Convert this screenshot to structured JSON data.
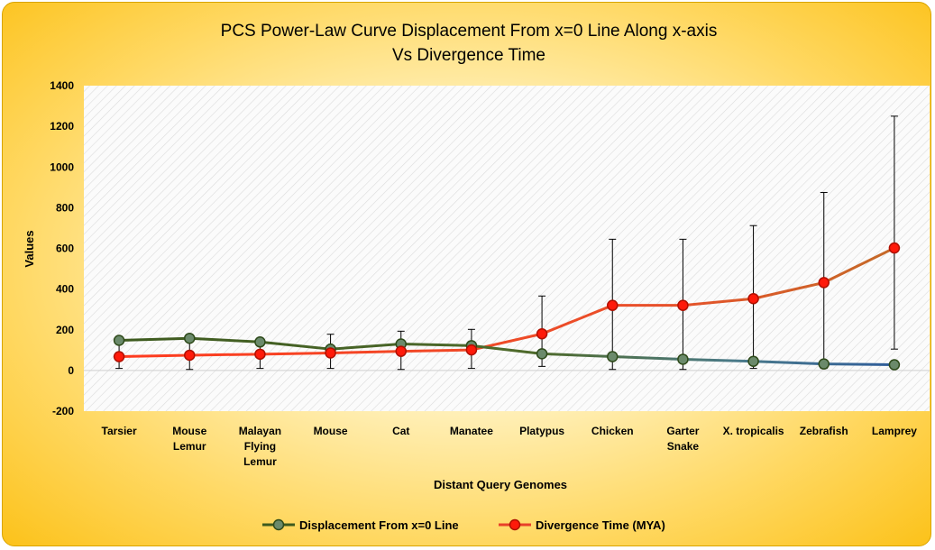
{
  "chart_data": {
    "type": "line",
    "title_line1": "PCS Power-Law Curve Displacement From x=0 Line Along x-axis",
    "title_line2": "Vs Divergence Time",
    "xlabel": "Distant Query Genomes",
    "ylabel": "Values",
    "ylim": [
      -200,
      1400
    ],
    "yticks": [
      -200,
      0,
      200,
      400,
      600,
      800,
      1000,
      1200,
      1400
    ],
    "grid": false,
    "legend_position": "bottom",
    "categories": [
      [
        "Tarsier"
      ],
      [
        "Mouse",
        "Lemur"
      ],
      [
        "Malayan",
        "Flying",
        "Lemur"
      ],
      [
        "Mouse"
      ],
      [
        "Cat"
      ],
      [
        "Manatee"
      ],
      [
        "Platypus"
      ],
      [
        "Chicken"
      ],
      [
        "Garter",
        "Snake"
      ],
      [
        "X. tropicalis"
      ],
      [
        "Zebrafish"
      ],
      [
        "Lamprey"
      ]
    ],
    "series": [
      {
        "name": "Displacement From x=0 Line",
        "color": "#3d5a1e",
        "marker_color": "#6b8a6b",
        "values": [
          148,
          158,
          140,
          105,
          130,
          122,
          82,
          68,
          55,
          45,
          32,
          28
        ]
      },
      {
        "name": "Divergence Time (MYA)",
        "color": "#e8402a",
        "marker_color": "#ff1a0a",
        "values": [
          68,
          75,
          80,
          86,
          94,
          101,
          180,
          320,
          320,
          353,
          432,
          602
        ],
        "error_low": [
          10,
          5,
          10,
          10,
          5,
          10,
          20,
          5,
          5,
          10,
          10,
          105
        ],
        "error_high": [
          150,
          160,
          150,
          178,
          193,
          202,
          366,
          645,
          645,
          712,
          875,
          1250
        ]
      }
    ]
  }
}
